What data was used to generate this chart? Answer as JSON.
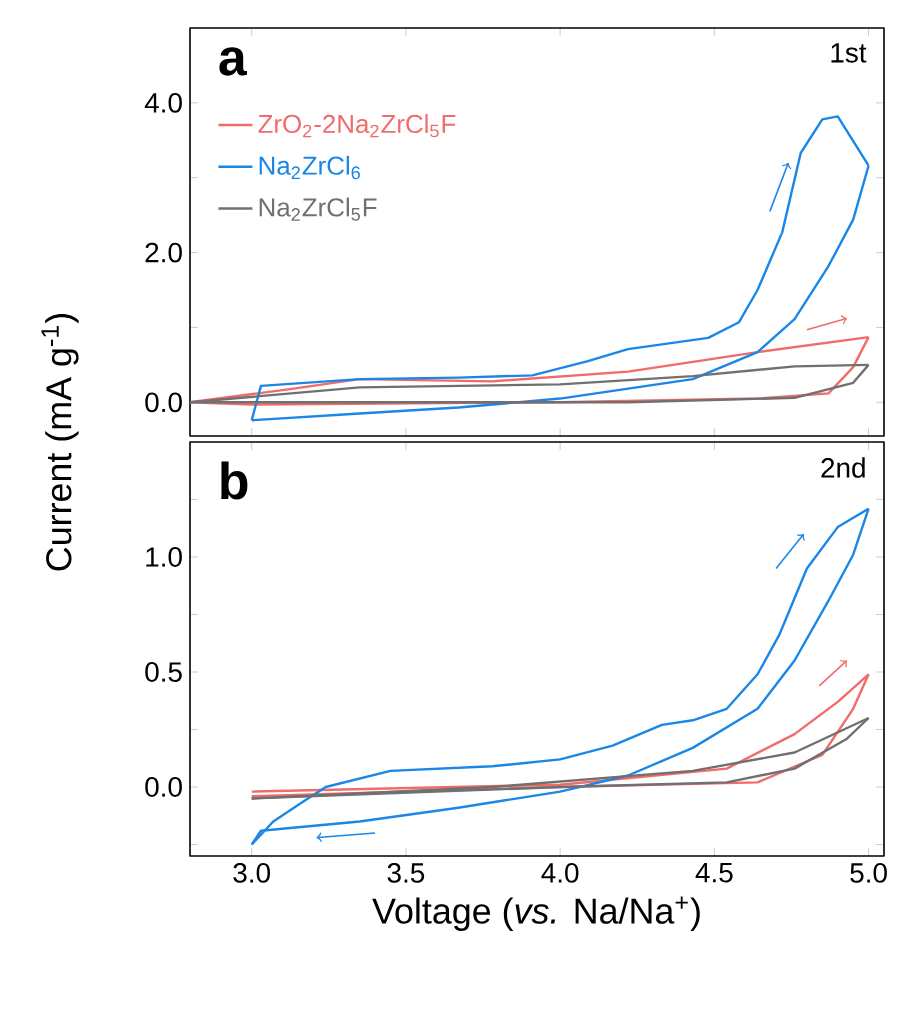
{
  "chart_data": [
    {
      "type": "line",
      "annotations": [
        "a",
        "1st"
      ],
      "ylabel": "Current (mA g$^{-1}$)",
      "xlim": [
        2.8,
        5.05
      ],
      "xticks": [
        {
          "value": 3.0,
          "label": null
        },
        {
          "value": 3.5,
          "label": null
        },
        {
          "value": 4.0,
          "label": null
        },
        {
          "value": 4.5,
          "label": null
        },
        {
          "value": 5.0,
          "label": null
        }
      ],
      "tick_labels": "y",
      "ylim": [
        -0.45,
        5.0
      ],
      "yticks": [
        {
          "value": 0,
          "label": "0.0"
        },
        {
          "value": 1,
          "label": null
        },
        {
          "value": 2,
          "label": "2.0"
        },
        {
          "value": 3,
          "label": null
        },
        {
          "value": 4,
          "label": "4.0"
        }
      ],
      "legend": "left",
      "series": [
        {
          "name": "ZrO$_{2}$-2Na$_{2}$ZrCl$_{5}$F",
          "color": "#f26b6b",
          "x": [
            2.8,
            3.13,
            3.35,
            3.78,
            4.22,
            4.64,
            5.0
          ],
          "values": [
            0.0,
            0.18,
            0.31,
            0.28,
            0.41,
            0.67,
            0.87
          ]
        },
        {
          "color": "#f26b6b",
          "x": [
            5.0,
            4.95,
            4.87,
            4.64,
            4.0,
            3.0,
            2.8
          ],
          "values": [
            0.87,
            0.47,
            0.12,
            0.05,
            0.0,
            -0.03,
            0.0
          ]
        },
        {
          "name": "Na$_{2}$ZrCl$_{6}$",
          "color": "#1a86e8",
          "x": [
            3.0,
            3.35,
            3.67,
            4.0,
            4.43,
            4.64,
            4.76,
            4.87,
            4.95,
            5.0
          ],
          "values": [
            -0.24,
            -0.15,
            -0.07,
            0.05,
            0.31,
            0.67,
            1.11,
            1.82,
            2.44,
            3.16
          ]
        },
        {
          "color": "#1a86e8",
          "x": [
            5.0,
            4.9,
            4.85,
            4.78,
            4.72,
            4.64,
            4.58,
            4.48,
            4.22,
            4.09,
            3.91,
            3.67,
            3.35,
            3.03,
            3.0
          ],
          "values": [
            3.16,
            3.82,
            3.78,
            3.33,
            2.27,
            1.5,
            1.07,
            0.86,
            0.71,
            0.55,
            0.36,
            0.33,
            0.31,
            0.22,
            -0.24
          ]
        },
        {
          "name": "Na$_{2}$ZrCl$_{5}$F",
          "color": "#707070",
          "x": [
            2.8,
            3.35,
            4.0,
            4.43,
            4.76,
            5.0
          ],
          "values": [
            0.0,
            0.2,
            0.24,
            0.35,
            0.48,
            0.5
          ]
        },
        {
          "color": "#707070",
          "x": [
            5.0,
            4.95,
            4.76,
            4.22,
            3.35,
            2.8
          ],
          "values": [
            0.5,
            0.26,
            0.06,
            0.0,
            0.0,
            0.0
          ]
        }
      ]
    },
    {
      "type": "line",
      "annotations": [
        "b",
        "2nd"
      ],
      "xlabel": "Voltage (*vs.* Na/Na$^{+}$)",
      "xlim": [
        2.8,
        5.05
      ],
      "xticks": [
        {
          "value": 3.0,
          "label": "3.0"
        },
        {
          "value": 3.5,
          "label": "3.5"
        },
        {
          "value": 4.0,
          "label": "4.0"
        },
        {
          "value": 4.5,
          "label": "4.5"
        },
        {
          "value": 5.0,
          "label": "5.0"
        }
      ],
      "ylim": [
        -0.3,
        1.5
      ],
      "yticks": [
        {
          "value": -0.25,
          "label": null
        },
        {
          "value": 0,
          "label": "0.0"
        },
        {
          "value": 0.25,
          "label": null
        },
        {
          "value": 0.5,
          "label": "0.5"
        },
        {
          "value": 0.75,
          "label": null
        },
        {
          "value": 1.0,
          "label": "1.0"
        },
        {
          "value": 1.25,
          "label": null
        }
      ],
      "series": [
        {
          "color": "#f26b6b",
          "x": [
            3.0,
            4.0,
            4.54,
            4.76,
            4.9,
            5.0
          ],
          "values": [
            -0.02,
            0.01,
            0.08,
            0.23,
            0.37,
            0.49
          ]
        },
        {
          "color": "#f26b6b",
          "x": [
            5.0,
            4.95,
            4.85,
            4.64,
            4.0,
            3.0
          ],
          "values": [
            0.49,
            0.34,
            0.14,
            0.02,
            0.0,
            -0.04
          ]
        },
        {
          "color": "#1a86e8",
          "x": [
            3.0,
            3.07,
            3.16,
            3.24,
            3.45,
            3.78,
            4.0,
            4.17,
            4.33,
            4.43,
            4.54,
            4.64,
            4.71,
            4.8,
            4.9,
            5.0
          ],
          "values": [
            -0.25,
            -0.15,
            -0.07,
            0.0,
            0.07,
            0.09,
            0.12,
            0.18,
            0.27,
            0.29,
            0.34,
            0.49,
            0.66,
            0.95,
            1.13,
            1.21
          ]
        },
        {
          "color": "#1a86e8",
          "x": [
            5.0,
            4.95,
            4.87,
            4.76,
            4.64,
            4.43,
            4.22,
            4.0,
            3.67,
            3.35,
            3.03,
            3.0
          ],
          "values": [
            1.21,
            1.01,
            0.81,
            0.55,
            0.34,
            0.17,
            0.05,
            -0.02,
            -0.09,
            -0.15,
            -0.19,
            -0.25
          ]
        },
        {
          "color": "#707070",
          "x": [
            3.0,
            3.78,
            4.43,
            4.76,
            5.0
          ],
          "values": [
            -0.05,
            0.0,
            0.07,
            0.15,
            0.3
          ]
        },
        {
          "color": "#707070",
          "x": [
            5.0,
            4.93,
            4.76,
            4.54,
            4.0,
            3.0
          ],
          "values": [
            0.3,
            0.21,
            0.08,
            0.02,
            0.0,
            -0.05
          ]
        }
      ]
    }
  ]
}
